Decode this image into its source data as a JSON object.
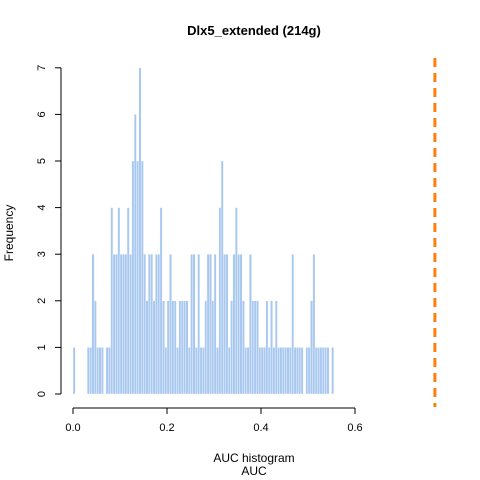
{
  "chart_data": {
    "type": "bar",
    "title": "Dlx5_extended (214g)",
    "xlabel": "AUC histogram",
    "xlabel_sub": "AUC",
    "ylabel": "Frequency",
    "xlim": [
      0.0,
      0.7
    ],
    "ylim": [
      0,
      7
    ],
    "x_ticks": [
      "0.0",
      "0.2",
      "0.4",
      "0.6"
    ],
    "x_tick_values": [
      0.0,
      0.2,
      0.4,
      0.6
    ],
    "y_ticks": [
      "0",
      "1",
      "2",
      "3",
      "4",
      "5",
      "6",
      "7"
    ],
    "y_tick_values": [
      0,
      1,
      2,
      3,
      4,
      5,
      6,
      7
    ],
    "bin_width": 0.005,
    "bin_start": 0.0,
    "counts": [
      1,
      0,
      0,
      0,
      0,
      0,
      1,
      1,
      3,
      2,
      1,
      1,
      1,
      0,
      1,
      1,
      4,
      3,
      3,
      4,
      3,
      3,
      3,
      4,
      3,
      5,
      6,
      5,
      7,
      5,
      3,
      2,
      3,
      3,
      2,
      3,
      3,
      4,
      2,
      1,
      2,
      3,
      2,
      2,
      1,
      2,
      2,
      2,
      2,
      1,
      3,
      3,
      1,
      3,
      1,
      1,
      2,
      3,
      3,
      2,
      3,
      1,
      4,
      5,
      3,
      3,
      1,
      2,
      3,
      4,
      3,
      3,
      2,
      1,
      1,
      3,
      2,
      2,
      2,
      1,
      1,
      1,
      2,
      1,
      2,
      1,
      2,
      1,
      1,
      1,
      1,
      1,
      1,
      3,
      1,
      1,
      1,
      1,
      0,
      1,
      1,
      2,
      3,
      1,
      1,
      1,
      1,
      1,
      1,
      0,
      1,
      0,
      0,
      0,
      0,
      0,
      0,
      0,
      0,
      0,
      0,
      0,
      0
    ],
    "counts_note": "",
    "bar_color": "#a9c8f0",
    "reference_line": {
      "x": 0.77,
      "color": "#ff7f0e",
      "style": "dashed"
    }
  }
}
